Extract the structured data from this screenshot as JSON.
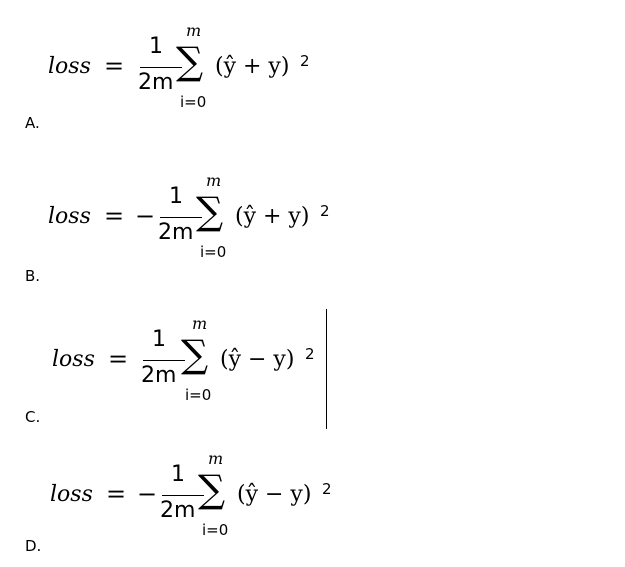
{
  "options": [
    {
      "letter": "A.",
      "lhs": "loss",
      "equals": "=",
      "sign": "",
      "numerator": "1",
      "denominator": "2m",
      "sum_upper": "m",
      "sum_symbol": "∑",
      "sum_lower": "i=0",
      "expression": "(ŷ + y)",
      "exponent": "2"
    },
    {
      "letter": "B.",
      "lhs": "loss",
      "equals": "=",
      "sign": "−",
      "numerator": "1",
      "denominator": "2m",
      "sum_upper": "m",
      "sum_symbol": "∑",
      "sum_lower": "i=0",
      "expression": "(ŷ + y)",
      "exponent": "2"
    },
    {
      "letter": "C.",
      "lhs": "loss",
      "equals": "=",
      "sign": "",
      "numerator": "1",
      "denominator": "2m",
      "sum_upper": "m",
      "sum_symbol": "∑",
      "sum_lower": "i=0",
      "expression": "(ŷ − y)",
      "exponent": "2"
    },
    {
      "letter": "D.",
      "lhs": "loss",
      "equals": "=",
      "sign": "−",
      "numerator": "1",
      "denominator": "2m",
      "sum_upper": "m",
      "sum_symbol": "∑",
      "sum_lower": "i=0",
      "expression": "(ŷ − y)",
      "exponent": "2"
    }
  ]
}
